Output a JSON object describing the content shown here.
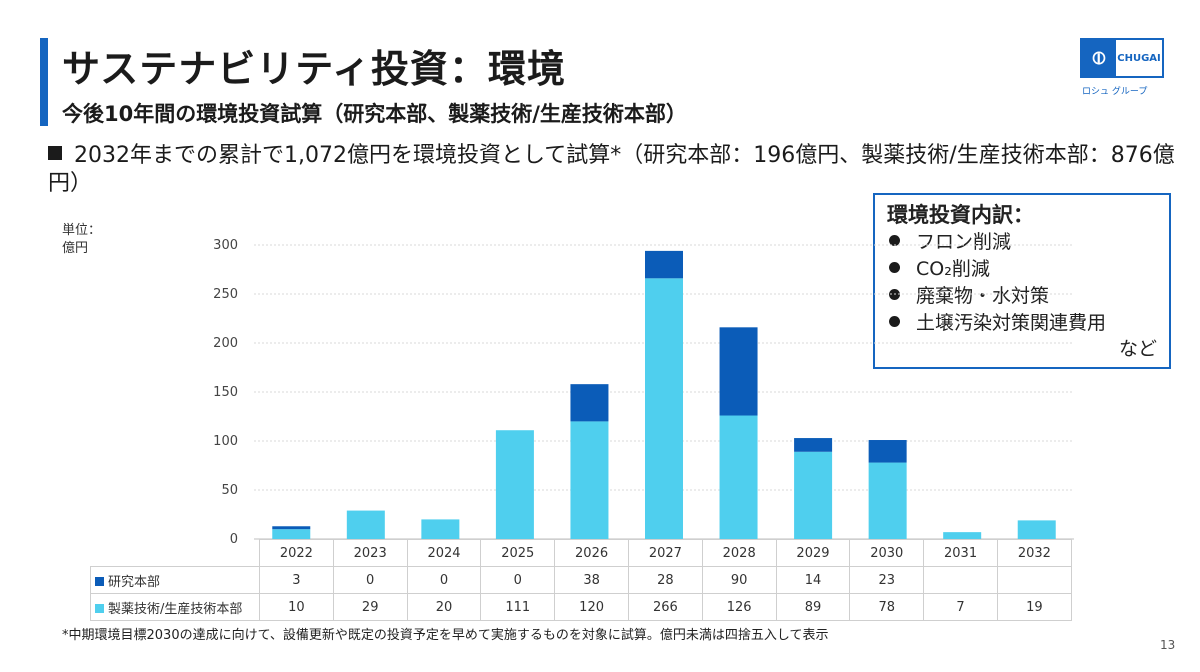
{
  "header": {
    "title": "サステナビリティ投資：環境",
    "subtitle": "今後10年間の環境投資試算（研究本部、製薬技術/生産技術本部）"
  },
  "logo": {
    "text": "CHUGAI",
    "sub": "ロシュ グループ"
  },
  "bullet": "2032年までの累計で1,072億円を環境投資として試算*（研究本部：196億円、製薬技術/生産技術本部：876億円）",
  "breakdown": {
    "title": "環境投資内訳：",
    "items": [
      "フロン削減",
      "CO₂削減",
      "廃棄物・水対策",
      "土壌汚染対策関連費用"
    ],
    "tail": "など"
  },
  "unit_label_line1": "単位：",
  "unit_label_line2": "億円",
  "colors": {
    "research": "#0b5cb8",
    "tech": "#4fcfee",
    "accent": "#1565c0"
  },
  "chart_data": {
    "type": "bar",
    "stacked": true,
    "categories": [
      "2022",
      "2023",
      "2024",
      "2025",
      "2026",
      "2027",
      "2028",
      "2029",
      "2030",
      "2031",
      "2032"
    ],
    "series": [
      {
        "name": "製薬技術/生産技術本部",
        "values": [
          10,
          29,
          20,
          111,
          120,
          266,
          126,
          89,
          78,
          7,
          19
        ]
      },
      {
        "name": "研究本部",
        "values": [
          3,
          0,
          0,
          0,
          38,
          28,
          90,
          14,
          23,
          null,
          null
        ]
      }
    ],
    "ylim": [
      0,
      300
    ],
    "yticks": [
      0,
      50,
      100,
      150,
      200,
      250,
      300
    ],
    "grid": true
  },
  "footnote": "*中期環境目標2030の達成に向けて、設備更新や既定の投資予定を早めて実施するものを対象に試算。億円未満は四捨五入して表示",
  "page_number": "13"
}
